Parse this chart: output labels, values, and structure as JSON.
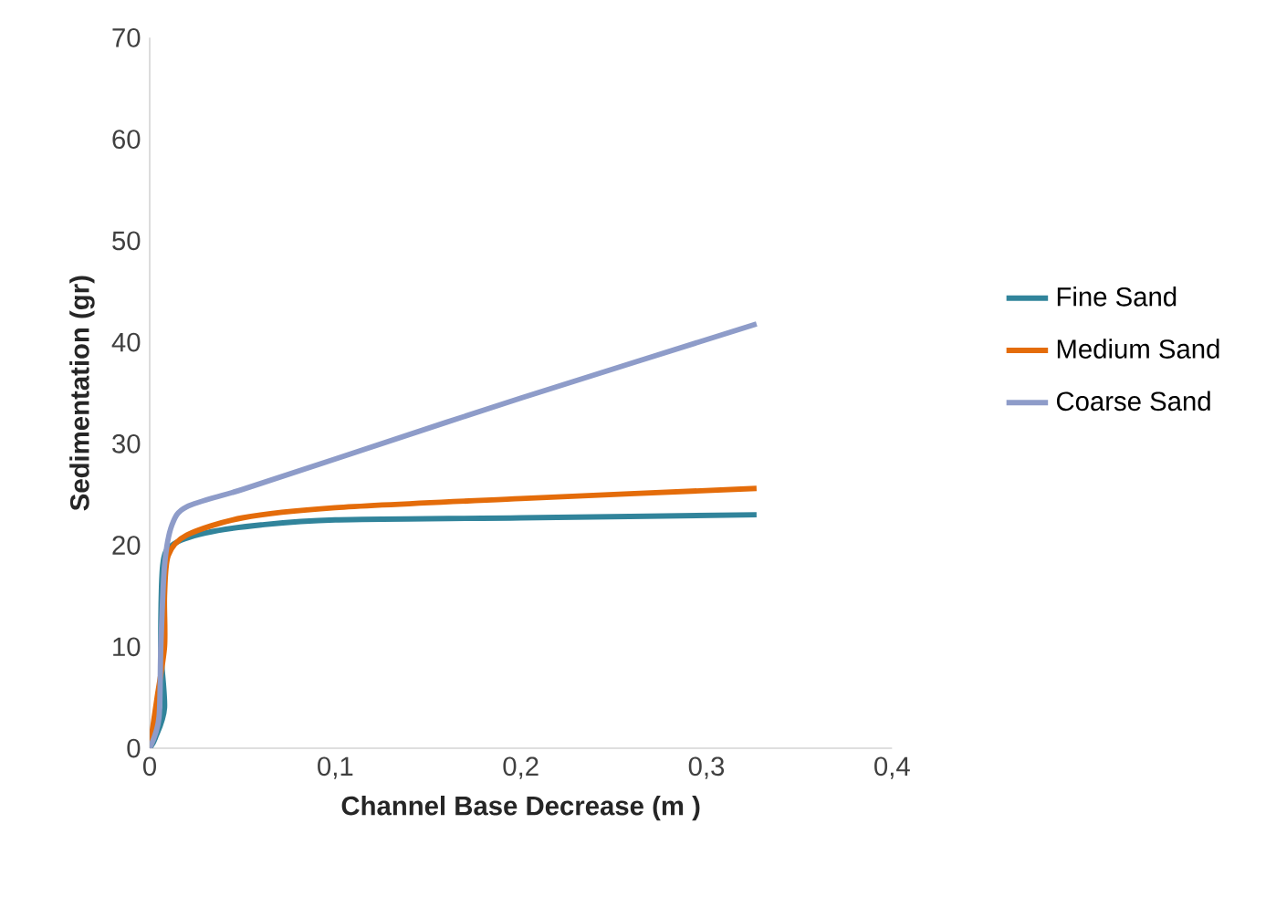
{
  "chart_data": {
    "type": "line",
    "xlabel": "Channel Base Decrease (m )",
    "ylabel": "Sedimentation (gr)",
    "xlim": [
      0,
      0.4
    ],
    "ylim": [
      0,
      70
    ],
    "xticks": [
      0,
      {
        "value": 0.1,
        "label": "0,1"
      },
      {
        "value": 0.2,
        "label": "0,2"
      },
      {
        "value": 0.3,
        "label": "0,3"
      },
      {
        "value": 0.4,
        "label": "0,4"
      }
    ],
    "yticks": [
      0,
      10,
      20,
      30,
      40,
      50,
      60,
      70
    ],
    "grid": false,
    "legend": "right",
    "marker": "none",
    "line_style": "solid",
    "series": [
      {
        "name": "Fine Sand",
        "color": "#31849b",
        "x": [
          0,
          0.003,
          0.008,
          0.006,
          0.007,
          0.012,
          0.03,
          0.06,
          0.1,
          0.2,
          0.327
        ],
        "values": [
          0,
          1,
          4,
          10,
          18,
          20,
          21.2,
          22,
          22.5,
          22.7,
          23
        ]
      },
      {
        "name": "Medium Sand",
        "color": "#e46c0a",
        "x": [
          0,
          0.004,
          0.008,
          0.008,
          0.01,
          0.02,
          0.05,
          0.1,
          0.2,
          0.327
        ],
        "values": [
          0,
          5,
          10,
          15,
          19,
          21,
          22.7,
          23.7,
          24.6,
          25.6
        ]
      },
      {
        "name": "Coarse Sand",
        "color": "#8e9cc9",
        "x": [
          0,
          0.005,
          0.006,
          0.008,
          0.012,
          0.02,
          0.05,
          0.1,
          0.2,
          0.327
        ],
        "values": [
          0,
          3,
          10,
          18,
          22,
          23.8,
          25.5,
          28.5,
          34.5,
          41.8
        ]
      }
    ]
  }
}
